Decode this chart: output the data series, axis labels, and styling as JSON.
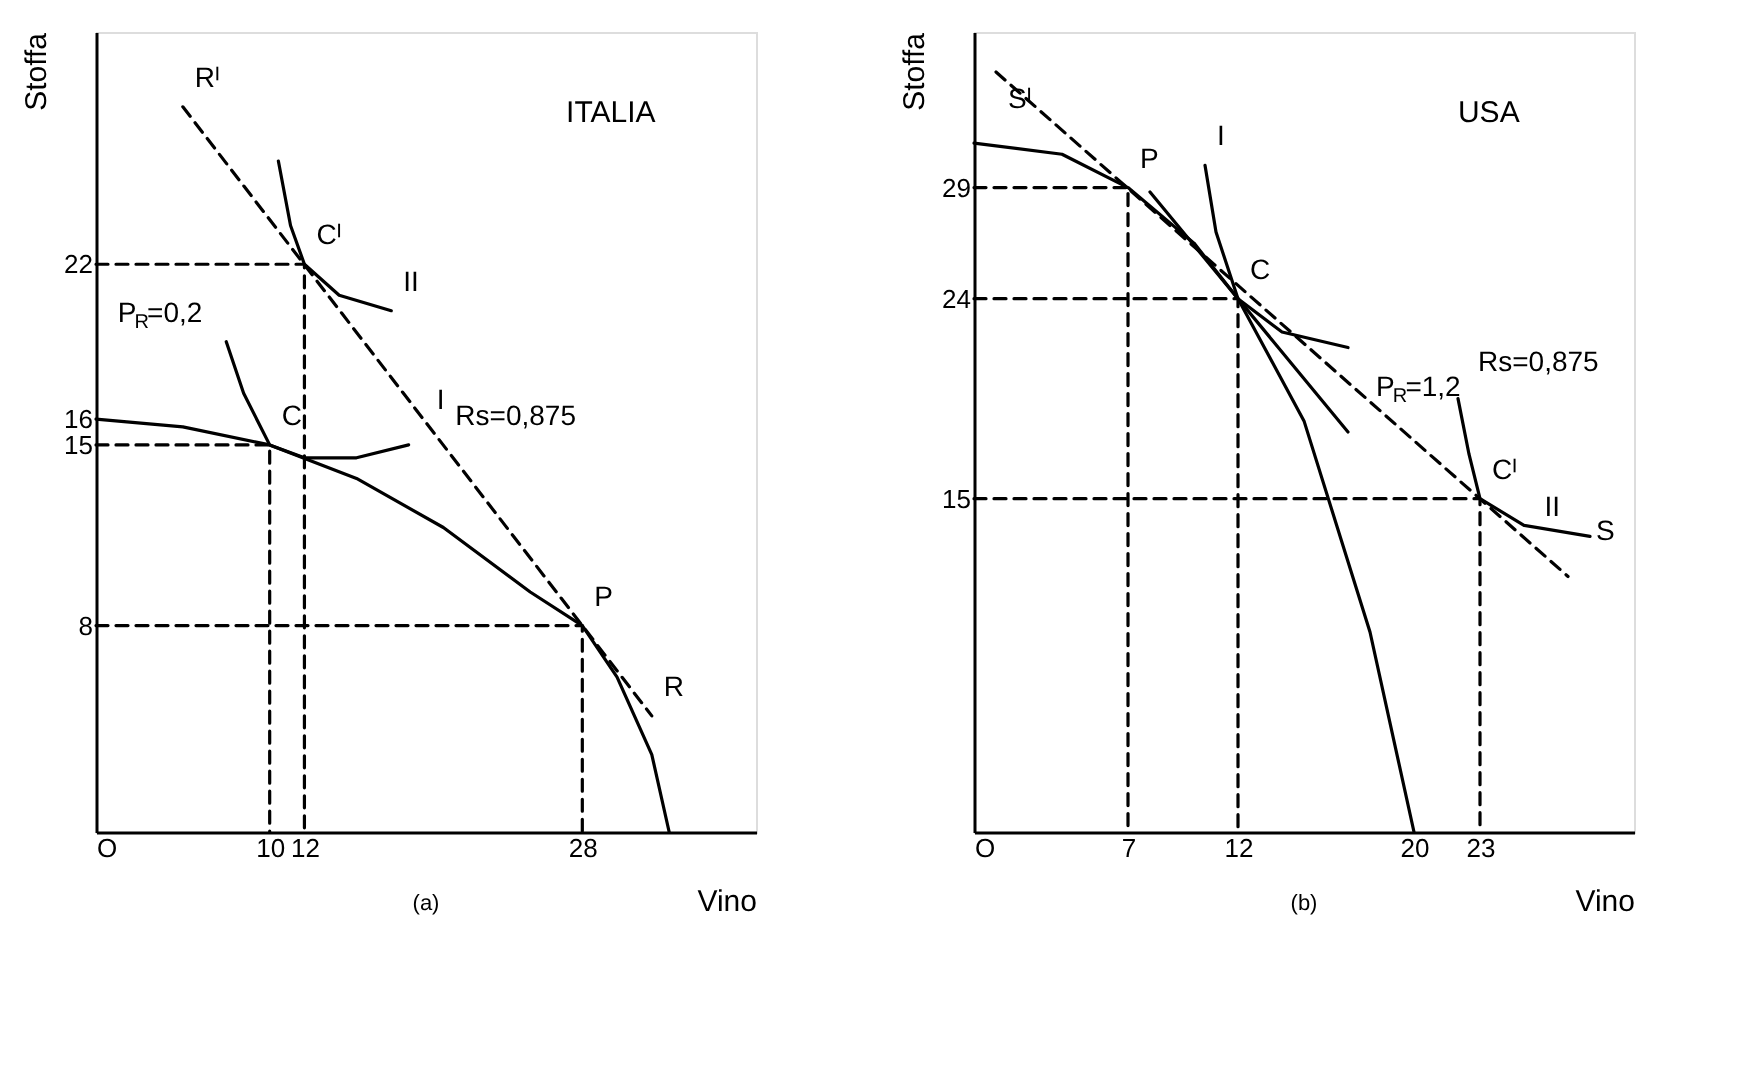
{
  "chart_data": [
    {
      "type": "line",
      "title": "ITALIA",
      "xlabel": "Vino",
      "ylabel": "Stoffa",
      "xlim": [
        0,
        38
      ],
      "ylim": [
        0,
        31
      ],
      "xticks": [
        {
          "value": 0,
          "label": "O"
        },
        10,
        12,
        28
      ],
      "yticks": [
        8,
        15,
        16,
        22
      ],
      "grid": false,
      "series": [
        {
          "color": "#000000",
          "line_style": "solid",
          "x": [
            0,
            5,
            10,
            15,
            20,
            25,
            28,
            30,
            32,
            33
          ],
          "values": [
            16,
            15.7,
            15,
            13.7,
            11.8,
            9.3,
            8,
            6,
            3,
            0
          ]
        },
        {
          "color": "#000000",
          "line_style": "dashed",
          "x": [
            5,
            32
          ],
          "values": [
            28.1,
            4.5
          ]
        },
        {
          "color": "#000000",
          "line_style": "solid",
          "x": [
            7.5,
            8.5,
            10,
            12,
            15,
            18
          ],
          "values": [
            19,
            17,
            15,
            14.5,
            14.5,
            15
          ]
        },
        {
          "color": "#000000",
          "line_style": "solid",
          "x": [
            10.5,
            11.2,
            12,
            14,
            17
          ],
          "values": [
            26,
            23.5,
            22,
            20.8,
            20.2
          ]
        },
        {
          "color": "#000000",
          "line_style": "dashed",
          "x": [
            0,
            10,
            10
          ],
          "values": [
            15,
            15,
            0
          ]
        },
        {
          "color": "#000000",
          "line_style": "dashed",
          "x": [
            0,
            12,
            12
          ],
          "values": [
            22,
            22,
            0
          ]
        },
        {
          "color": "#000000",
          "line_style": "dashed",
          "x": [
            0,
            28,
            28
          ],
          "values": [
            8,
            8,
            0
          ]
        }
      ],
      "annotations": [
        {
          "text": "Rᴵ",
          "x": 5,
          "y": 28.1
        },
        {
          "text": "Cᴵ",
          "x": 12,
          "y": 22
        },
        {
          "text": "II",
          "x": 17,
          "y": 20.2
        },
        {
          "text": "P$_{R}$=0,2",
          "x": 7.5,
          "y": 19
        },
        {
          "text": "C",
          "x": 10,
          "y": 15
        },
        {
          "text": "I",
          "x": 18,
          "y": 15
        },
        {
          "text": "Rs=0,875",
          "x": 20,
          "y": 15
        },
        {
          "text": "P",
          "x": 28,
          "y": 8
        },
        {
          "text": "R",
          "x": 32,
          "y": 4.5
        },
        "(a)"
      ]
    },
    {
      "type": "line",
      "title": "USA",
      "xlabel": "Vino",
      "ylabel": "Stoffa",
      "xlim": [
        0,
        30
      ],
      "ylim": [
        0,
        36
      ],
      "xticks": [
        {
          "value": 0,
          "label": "O"
        },
        7,
        12,
        20,
        23
      ],
      "yticks": [
        15,
        24,
        29
      ],
      "grid": false,
      "series": [
        {
          "color": "#000000",
          "line_style": "solid",
          "x": [
            0,
            4,
            7,
            10,
            12,
            15,
            18,
            20
          ],
          "values": [
            31,
            30.5,
            29,
            26.5,
            24,
            18.5,
            9,
            0
          ]
        },
        {
          "color": "#000000",
          "line_style": "dashed",
          "x": [
            1,
            27
          ],
          "values": [
            34.2,
            11.5
          ]
        },
        {
          "color": "#000000",
          "line_style": "solid",
          "x": [
            8,
            17
          ],
          "values": [
            28.8,
            18
          ]
        },
        {
          "color": "#000000",
          "line_style": "solid",
          "x": [
            10.5,
            11,
            12,
            14,
            17
          ],
          "values": [
            30,
            27,
            24,
            22.5,
            21.8
          ]
        },
        {
          "color": "#000000",
          "line_style": "solid",
          "x": [
            22,
            22.5,
            23,
            25,
            28
          ],
          "values": [
            19.5,
            17,
            15,
            13.8,
            13.3
          ]
        },
        {
          "color": "#000000",
          "line_style": "dashed",
          "x": [
            0,
            7,
            7
          ],
          "values": [
            29,
            29,
            0
          ]
        },
        {
          "color": "#000000",
          "line_style": "dashed",
          "x": [
            0,
            12,
            12
          ],
          "values": [
            24,
            24,
            0
          ]
        },
        {
          "color": "#000000",
          "line_style": "dashed",
          "x": [
            0,
            23,
            23
          ],
          "values": [
            15,
            15,
            0
          ]
        }
      ],
      "annotations": [
        {
          "text": "Sᴵ",
          "x": 1,
          "y": 34.2
        },
        {
          "text": "P",
          "x": 7,
          "y": 29
        },
        {
          "text": "I",
          "x": 10.5,
          "y": 30
        },
        {
          "text": "C",
          "x": 12,
          "y": 24
        },
        {
          "text": "P$_{R}$=1,2",
          "x": 17,
          "y": 18
        },
        {
          "text": "Rs=0,875",
          "x": 22,
          "y": 19.5
        },
        {
          "text": "Cᴵ",
          "x": 23,
          "y": 15
        },
        {
          "text": "II",
          "x": 28,
          "y": 13.3
        },
        {
          "text": "S",
          "x": 27,
          "y": 11.5
        },
        "(b)"
      ]
    }
  ]
}
